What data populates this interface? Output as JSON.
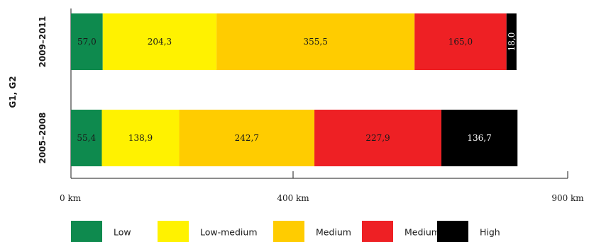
{
  "chart_data": {
    "type": "bar",
    "orientation": "horizontal",
    "stacked": true,
    "y_group_label": "G1, G2",
    "categories": [
      "2009–2011",
      "2005–2008"
    ],
    "series": [
      {
        "name": "Low",
        "color": "#0e8a4e",
        "values": [
          57.0,
          55.4
        ],
        "labels": [
          "57,0",
          "55,4"
        ]
      },
      {
        "name": "Low-medium",
        "color": "#fff200",
        "values": [
          204.3,
          138.9
        ],
        "labels": [
          "204,3",
          "138,9"
        ]
      },
      {
        "name": "Medium",
        "color": "#ffcc00",
        "values": [
          355.5,
          242.7
        ],
        "labels": [
          "355,5",
          "242,7"
        ]
      },
      {
        "name": "Medium-high",
        "color": "#ee2024",
        "values": [
          165.0,
          227.9
        ],
        "labels": [
          "165,0",
          "227,9"
        ]
      },
      {
        "name": "High",
        "color": "#000000",
        "values": [
          18.0,
          136.7
        ],
        "labels": [
          "18,0",
          "136,7"
        ]
      }
    ],
    "x_ticks": [
      0,
      400,
      900
    ],
    "x_tick_labels": [
      "0 km",
      "400 km",
      "900 km"
    ],
    "xlim": [
      0,
      900
    ],
    "xlabel": "",
    "ylabel": "",
    "grid": false,
    "legend_position": "bottom"
  }
}
